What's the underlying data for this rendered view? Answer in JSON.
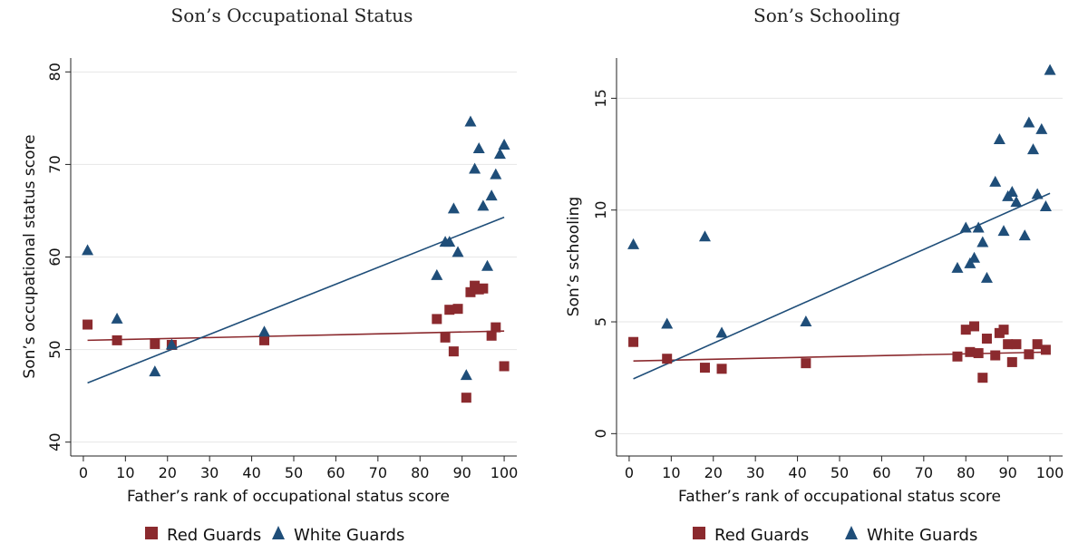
{
  "colors": {
    "red": "#8b2a2e",
    "blue": "#1f4e79"
  },
  "legend": {
    "red_label": "Red Guards",
    "blue_label": "White Guards"
  },
  "chart_data": [
    {
      "type": "scatter",
      "title": "Son’s Occupational Status",
      "xlabel": "Father’s rank of occupational status score",
      "ylabel": "Son’s occupational status score",
      "xlim": [
        -3,
        103
      ],
      "ylim": [
        38.5,
        81.5
      ],
      "xticks": [
        0,
        10,
        20,
        30,
        40,
        50,
        60,
        70,
        80,
        90,
        100
      ],
      "yticks": [
        40,
        50,
        60,
        70,
        80
      ],
      "grid": true,
      "series": [
        {
          "name": "Red Guards",
          "color_key": "red",
          "marker": "square",
          "points": [
            [
              1,
              52.7
            ],
            [
              8,
              51
            ],
            [
              17,
              50.6
            ],
            [
              21,
              50.5
            ],
            [
              43,
              51
            ],
            [
              84,
              53.3
            ],
            [
              86,
              51.3
            ],
            [
              87,
              54.3
            ],
            [
              88,
              49.8
            ],
            [
              89,
              54.4
            ],
            [
              91,
              44.8
            ],
            [
              92,
              56.2
            ],
            [
              93,
              56.9
            ],
            [
              94,
              56.5
            ],
            [
              95,
              56.6
            ],
            [
              97,
              51.5
            ],
            [
              98,
              52.4
            ],
            [
              100,
              48.2
            ]
          ],
          "fit": [
            [
              1,
              51
            ],
            [
              100,
              52
            ]
          ]
        },
        {
          "name": "White Guards",
          "color_key": "blue",
          "marker": "triangle",
          "points": [
            [
              1,
              60.7
            ],
            [
              8,
              53.3
            ],
            [
              17,
              47.6
            ],
            [
              21,
              50.5
            ],
            [
              43,
              51.9
            ],
            [
              84,
              58
            ],
            [
              86,
              61.6
            ],
            [
              87,
              61.6
            ],
            [
              88,
              65.2
            ],
            [
              89,
              60.5
            ],
            [
              91,
              47.2
            ],
            [
              92,
              74.6
            ],
            [
              93,
              69.5
            ],
            [
              94,
              71.7
            ],
            [
              95,
              65.5
            ],
            [
              96,
              59
            ],
            [
              97,
              66.6
            ],
            [
              98,
              68.9
            ],
            [
              99,
              71.1
            ],
            [
              100,
              72.1
            ]
          ],
          "fit": [
            [
              1,
              46.4
            ],
            [
              100,
              64.3
            ]
          ]
        }
      ]
    },
    {
      "type": "scatter",
      "title": "Son’s Schooling",
      "xlabel": "Father’s rank of occupational status score",
      "ylabel": "Son’s schooling",
      "xlim": [
        -3,
        103
      ],
      "ylim": [
        -1,
        16.8
      ],
      "xticks": [
        0,
        10,
        20,
        30,
        40,
        50,
        60,
        70,
        80,
        90,
        100
      ],
      "yticks": [
        0,
        5,
        10,
        15
      ],
      "grid": true,
      "series": [
        {
          "name": "Red Guards",
          "color_key": "red",
          "marker": "square",
          "points": [
            [
              1,
              4.1
            ],
            [
              9,
              3.35
            ],
            [
              18,
              2.95
            ],
            [
              22,
              2.9
            ],
            [
              42,
              3.15
            ],
            [
              78,
              3.45
            ],
            [
              80,
              4.65
            ],
            [
              81,
              3.65
            ],
            [
              82,
              4.8
            ],
            [
              83,
              3.6
            ],
            [
              84,
              2.5
            ],
            [
              85,
              4.25
            ],
            [
              87,
              3.5
            ],
            [
              88,
              4.5
            ],
            [
              89,
              4.65
            ],
            [
              90,
              4
            ],
            [
              91,
              3.2
            ],
            [
              92,
              4
            ],
            [
              95,
              3.55
            ],
            [
              97,
              4
            ],
            [
              99,
              3.75
            ]
          ],
          "fit": [
            [
              1,
              3.25
            ],
            [
              100,
              3.65
            ]
          ]
        },
        {
          "name": "White Guards",
          "color_key": "blue",
          "marker": "triangle",
          "points": [
            [
              1,
              8.45
            ],
            [
              9,
              4.9
            ],
            [
              18,
              8.8
            ],
            [
              22,
              4.5
            ],
            [
              42,
              5
            ],
            [
              78,
              7.4
            ],
            [
              80,
              9.2
            ],
            [
              81,
              7.6
            ],
            [
              82,
              7.85
            ],
            [
              83,
              9.2
            ],
            [
              84,
              8.55
            ],
            [
              85,
              6.95
            ],
            [
              87,
              11.25
            ],
            [
              88,
              13.15
            ],
            [
              89,
              9.05
            ],
            [
              90,
              10.6
            ],
            [
              91,
              10.8
            ],
            [
              92,
              10.35
            ],
            [
              94,
              8.85
            ],
            [
              95,
              13.9
            ],
            [
              96,
              12.7
            ],
            [
              97,
              10.7
            ],
            [
              98,
              13.6
            ],
            [
              99,
              10.15
            ],
            [
              100,
              16.25
            ]
          ],
          "fit": [
            [
              1,
              2.45
            ],
            [
              100,
              10.75
            ]
          ]
        }
      ]
    }
  ]
}
